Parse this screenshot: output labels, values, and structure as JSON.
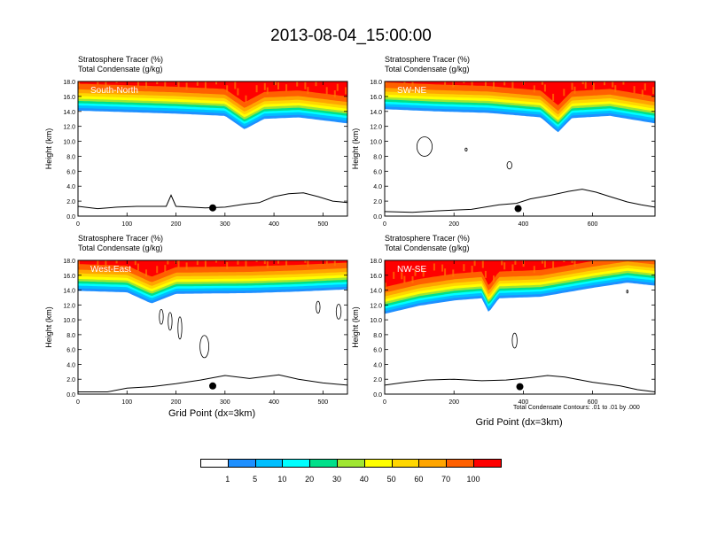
{
  "title": "2013-08-04_15:00:00",
  "colorbar": {
    "levels": [
      "1",
      "5",
      "10",
      "20",
      "30",
      "40",
      "50",
      "60",
      "70",
      "100"
    ],
    "colors": [
      "#ffffff",
      "#1e90ff",
      "#00bfff",
      "#00ffff",
      "#00e08a",
      "#00e000",
      "#a0e632",
      "#ffff00",
      "#ffd700",
      "#ffa500",
      "#ff6000",
      "#ff0000"
    ]
  },
  "chart_data": [
    {
      "type": "contour",
      "panel": "South-North",
      "header_line1": "Stratosphere Tracer   (%)",
      "header_line2": "Total Condensate   (g/kg)",
      "ylabel": "Height (km)",
      "xlabel": "",
      "xlim": [
        0,
        550
      ],
      "ylim": [
        0,
        18
      ],
      "xticks": [
        "0",
        "100",
        "200",
        "300",
        "400",
        "500"
      ],
      "yticks": [
        "0.0",
        "2.0",
        "4.0",
        "6.0",
        "8.0",
        "10.0",
        "12.0",
        "14.0",
        "16.0",
        "18.0"
      ],
      "tropopause_km": [
        [
          0,
          14.1
        ],
        [
          100,
          13.9
        ],
        [
          200,
          13.7
        ],
        [
          300,
          13.4
        ],
        [
          340,
          11.6
        ],
        [
          380,
          13.0
        ],
        [
          450,
          13.2
        ],
        [
          550,
          12.4
        ]
      ],
      "terrain_km": [
        [
          0,
          1.3
        ],
        [
          40,
          1.0
        ],
        [
          80,
          1.2
        ],
        [
          120,
          1.3
        ],
        [
          180,
          1.3
        ],
        [
          190,
          2.8
        ],
        [
          200,
          1.3
        ],
        [
          260,
          1.1
        ],
        [
          300,
          1.2
        ],
        [
          340,
          1.6
        ],
        [
          370,
          1.8
        ],
        [
          400,
          2.6
        ],
        [
          430,
          3.0
        ],
        [
          460,
          3.1
        ],
        [
          490,
          2.6
        ],
        [
          520,
          2.0
        ],
        [
          550,
          1.8
        ]
      ],
      "marker": {
        "x": 275,
        "y_km": 1.1
      },
      "condensate_contours": [],
      "footnote": "",
      "xaxis_title": ""
    },
    {
      "type": "contour",
      "panel": "SW-NE",
      "header_line1": "Stratosphere Tracer   (%)",
      "header_line2": "Total Condensate   (g/kg)",
      "ylabel": "Height (km)",
      "xlabel": "",
      "xlim": [
        0,
        780
      ],
      "ylim": [
        0,
        18
      ],
      "xticks": [
        "0",
        "200",
        "400",
        "600"
      ],
      "yticks": [
        "0.0",
        "2.0",
        "4.0",
        "6.0",
        "8.0",
        "10.0",
        "12.0",
        "14.0",
        "16.0",
        "18.0"
      ],
      "tropopause_km": [
        [
          0,
          14.3
        ],
        [
          150,
          14.0
        ],
        [
          300,
          13.8
        ],
        [
          450,
          13.2
        ],
        [
          500,
          11.2
        ],
        [
          540,
          13.1
        ],
        [
          650,
          13.4
        ],
        [
          780,
          12.4
        ]
      ],
      "terrain_km": [
        [
          0,
          0.6
        ],
        [
          80,
          0.5
        ],
        [
          150,
          0.7
        ],
        [
          250,
          0.9
        ],
        [
          330,
          1.5
        ],
        [
          380,
          1.7
        ],
        [
          420,
          2.3
        ],
        [
          480,
          2.8
        ],
        [
          530,
          3.3
        ],
        [
          570,
          3.6
        ],
        [
          610,
          3.2
        ],
        [
          650,
          2.6
        ],
        [
          700,
          1.9
        ],
        [
          740,
          1.5
        ],
        [
          780,
          1.2
        ]
      ],
      "marker": {
        "x": 385,
        "y_km": 1.0
      },
      "condensate_contours": [
        {
          "cx": 115,
          "cy_km": 9.3,
          "rx": 22,
          "ry_km": 1.3
        },
        {
          "cx": 235,
          "cy_km": 8.9,
          "rx": 3,
          "ry_km": 0.2
        },
        {
          "cx": 360,
          "cy_km": 6.8,
          "rx": 7,
          "ry_km": 0.5
        }
      ],
      "footnote": "",
      "xaxis_title": ""
    },
    {
      "type": "contour",
      "panel": "West-East",
      "header_line1": "Stratosphere Tracer   (%)",
      "header_line2": "Total Condensate   (g/kg)",
      "ylabel": "Height (km)",
      "xlabel": "Grid Point (dx=3km)",
      "xlim": [
        0,
        550
      ],
      "ylim": [
        0,
        18
      ],
      "xticks": [
        "0",
        "100",
        "200",
        "300",
        "400",
        "500"
      ],
      "yticks": [
        "0.0",
        "2.0",
        "4.0",
        "6.0",
        "8.0",
        "10.0",
        "12.0",
        "14.0",
        "16.0",
        "18.0"
      ],
      "tropopause_km": [
        [
          0,
          13.9
        ],
        [
          100,
          13.7
        ],
        [
          150,
          12.2
        ],
        [
          200,
          13.5
        ],
        [
          350,
          13.6
        ],
        [
          450,
          13.8
        ],
        [
          550,
          14.1
        ]
      ],
      "terrain_km": [
        [
          0,
          0.3
        ],
        [
          60,
          0.3
        ],
        [
          100,
          0.8
        ],
        [
          150,
          1.0
        ],
        [
          200,
          1.4
        ],
        [
          250,
          1.9
        ],
        [
          300,
          2.5
        ],
        [
          350,
          2.1
        ],
        [
          410,
          2.6
        ],
        [
          450,
          2.0
        ],
        [
          500,
          1.5
        ],
        [
          550,
          1.2
        ]
      ],
      "marker": {
        "x": 275,
        "y_km": 1.1
      },
      "condensate_contours": [
        {
          "cx": 170,
          "cy_km": 10.4,
          "rx": 4,
          "ry_km": 1.0
        },
        {
          "cx": 188,
          "cy_km": 9.8,
          "rx": 4,
          "ry_km": 1.2
        },
        {
          "cx": 208,
          "cy_km": 8.9,
          "rx": 4,
          "ry_km": 1.5
        },
        {
          "cx": 258,
          "cy_km": 6.4,
          "rx": 9,
          "ry_km": 1.5
        },
        {
          "cx": 490,
          "cy_km": 11.7,
          "rx": 4,
          "ry_km": 0.8
        },
        {
          "cx": 532,
          "cy_km": 11.1,
          "rx": 5,
          "ry_km": 1.0
        }
      ],
      "footnote": "",
      "xaxis_title": "Grid Point (dx=3km)"
    },
    {
      "type": "contour",
      "panel": "NW-SE",
      "header_line1": "Stratosphere Tracer   (%)",
      "header_line2": "Total Condensate   (g/kg)",
      "ylabel": "Height (km)",
      "xlabel": "Grid Point (dx=3km)",
      "xlim": [
        0,
        780
      ],
      "ylim": [
        0,
        18
      ],
      "xticks": [
        "0",
        "200",
        "400",
        "600"
      ],
      "yticks": [
        "0.0",
        "2.0",
        "4.0",
        "6.0",
        "8.0",
        "10.0",
        "12.0",
        "14.0",
        "16.0",
        "18.0"
      ],
      "tropopause_km": [
        [
          0,
          10.8
        ],
        [
          100,
          11.9
        ],
        [
          200,
          12.6
        ],
        [
          280,
          12.9
        ],
        [
          300,
          11.0
        ],
        [
          330,
          12.9
        ],
        [
          450,
          13.1
        ],
        [
          600,
          14.3
        ],
        [
          700,
          15.0
        ],
        [
          780,
          14.6
        ]
      ],
      "terrain_km": [
        [
          0,
          1.2
        ],
        [
          60,
          1.6
        ],
        [
          120,
          1.9
        ],
        [
          200,
          2.0
        ],
        [
          280,
          1.8
        ],
        [
          350,
          1.9
        ],
        [
          420,
          2.2
        ],
        [
          470,
          2.5
        ],
        [
          520,
          2.3
        ],
        [
          600,
          1.6
        ],
        [
          680,
          1.1
        ],
        [
          730,
          0.6
        ],
        [
          780,
          0.3
        ]
      ],
      "marker": {
        "x": 390,
        "y_km": 1.0
      },
      "condensate_contours": [
        {
          "cx": 375,
          "cy_km": 7.2,
          "rx": 7,
          "ry_km": 1.0
        },
        {
          "cx": 700,
          "cy_km": 13.8,
          "rx": 2,
          "ry_km": 0.2
        }
      ],
      "footnote": "Total Condensate Contours: .01 to .01 by .000",
      "xaxis_title": "Grid Point (dx=3km)"
    }
  ]
}
